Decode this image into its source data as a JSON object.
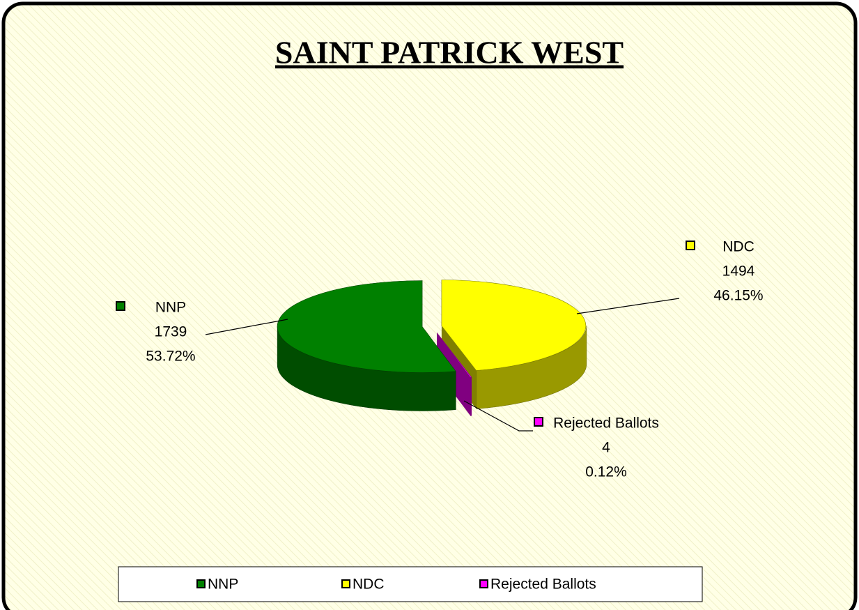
{
  "chart_data": {
    "type": "pie",
    "title": "SAINT PATRICK WEST",
    "categories": [
      "NDC",
      "Rejected Ballots",
      "NNP"
    ],
    "values": [
      1494,
      4,
      1739
    ],
    "percent_labels": [
      "46.15%",
      "0.12%",
      "53.72%"
    ],
    "colors": [
      "#ffff00",
      "#ff00ff",
      "#008000"
    ],
    "legend_order": [
      2,
      0,
      1
    ],
    "legend": "bottom"
  }
}
